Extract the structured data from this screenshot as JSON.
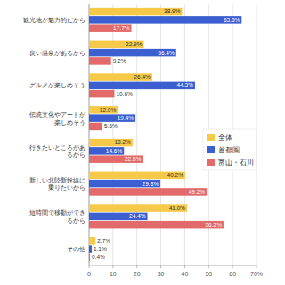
{
  "chart_data": {
    "type": "bar",
    "orientation": "horizontal",
    "categories": [
      "観光地が魅力的だから",
      "良い温泉があるから",
      "グルメが楽しめそう",
      "伝統文化やアートが楽しめそう",
      "行きたいところがあるから",
      "新しい北陸新幹線に乗りたいから",
      "短時間で移動ができるから",
      "その他"
    ],
    "series": [
      {
        "name": "全体",
        "color": "#f7c948",
        "values": [
          38.9,
          22.9,
          26.4,
          12.0,
          18.2,
          40.2,
          41.0,
          2.7
        ],
        "value_labels": [
          "38.9%",
          "22.9%",
          "26.4%",
          "12.0%",
          "18.2%",
          "40.2%",
          "41.0%",
          "2.7%"
        ]
      },
      {
        "name": "首都圏",
        "color": "#3b5fd1",
        "values": [
          63.8,
          36.4,
          44.3,
          19.4,
          14.6,
          29.8,
          24.4,
          1.1
        ],
        "value_labels": [
          "63.8%",
          "36.4%",
          "44.3%",
          "19.4%",
          "14.6%",
          "29.8%",
          "24.4%",
          "1.1%"
        ]
      },
      {
        "name": "富山・石川",
        "color": "#e26a6a",
        "values": [
          17.7,
          9.2,
          10.6,
          5.6,
          22.5,
          49.2,
          56.2,
          0.4
        ],
        "value_labels": [
          "17.7%",
          "9.2%",
          "10.6%",
          "5.6%",
          "22.5%",
          "49.2%",
          "56.2%",
          "0.4%"
        ]
      }
    ],
    "xlim": [
      0,
      70
    ],
    "xticks": [
      0,
      10,
      20,
      30,
      40,
      50,
      60,
      {
        "value": 70,
        "label": "70%"
      }
    ],
    "grid": true,
    "legend": "right",
    "data_labels": true
  }
}
